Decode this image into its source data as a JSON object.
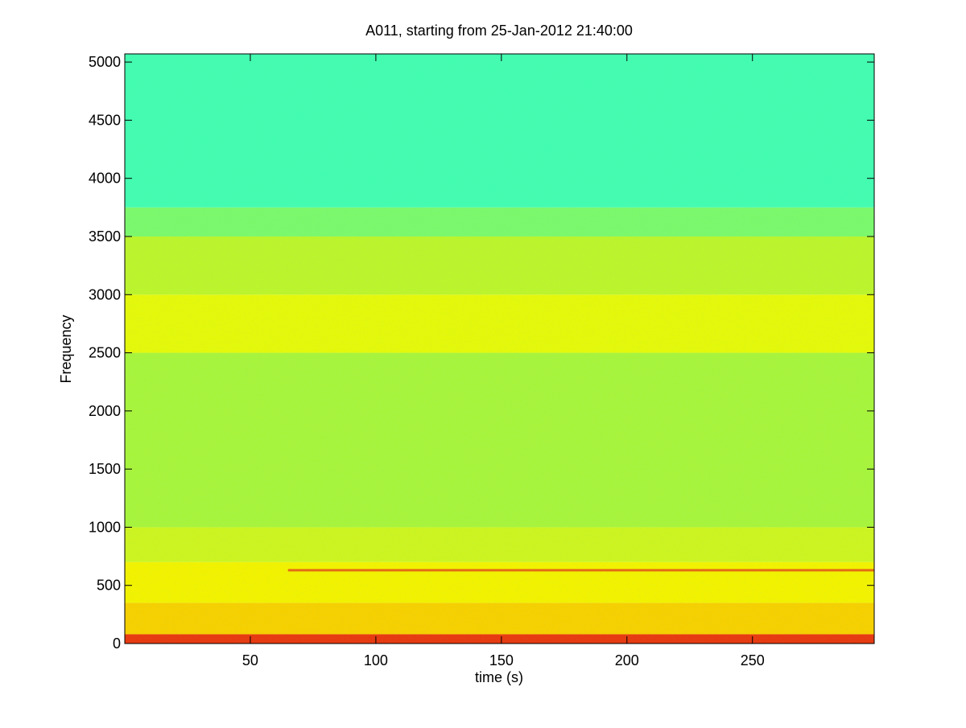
{
  "chart_data": {
    "type": "spectrogram",
    "title": "A011, starting from 25-Jan-2012 21:40:00",
    "x_label": "time (s)",
    "y_label": "Frequency",
    "xlim": [
      0,
      298.5
    ],
    "ylim": [
      0,
      5070
    ],
    "xticks": [
      50,
      100,
      150,
      200,
      250
    ],
    "yticks": [
      0,
      500,
      1000,
      1500,
      2000,
      2500,
      3000,
      3500,
      4000,
      4500,
      5000
    ],
    "bands": [
      {
        "from": 0,
        "to": 80,
        "color": "#e83a10"
      },
      {
        "from": 80,
        "to": 350,
        "color": "#f6d000"
      },
      {
        "from": 350,
        "to": 700,
        "color": "#f2f200"
      },
      {
        "from": 700,
        "to": 1000,
        "color": "#cdf420"
      },
      {
        "from": 1000,
        "to": 2500,
        "color": "#a8f43c"
      },
      {
        "from": 2500,
        "to": 3000,
        "color": "#e4f80a"
      },
      {
        "from": 3000,
        "to": 3500,
        "color": "#bcf42c"
      },
      {
        "from": 3500,
        "to": 3750,
        "color": "#7cf86c"
      },
      {
        "from": 3750,
        "to": 5070,
        "color": "#44fcb0"
      }
    ],
    "series": [
      {
        "x": [
          65,
          298.5
        ],
        "values": [
          630,
          630
        ],
        "color": "#e04a1a"
      }
    ]
  }
}
